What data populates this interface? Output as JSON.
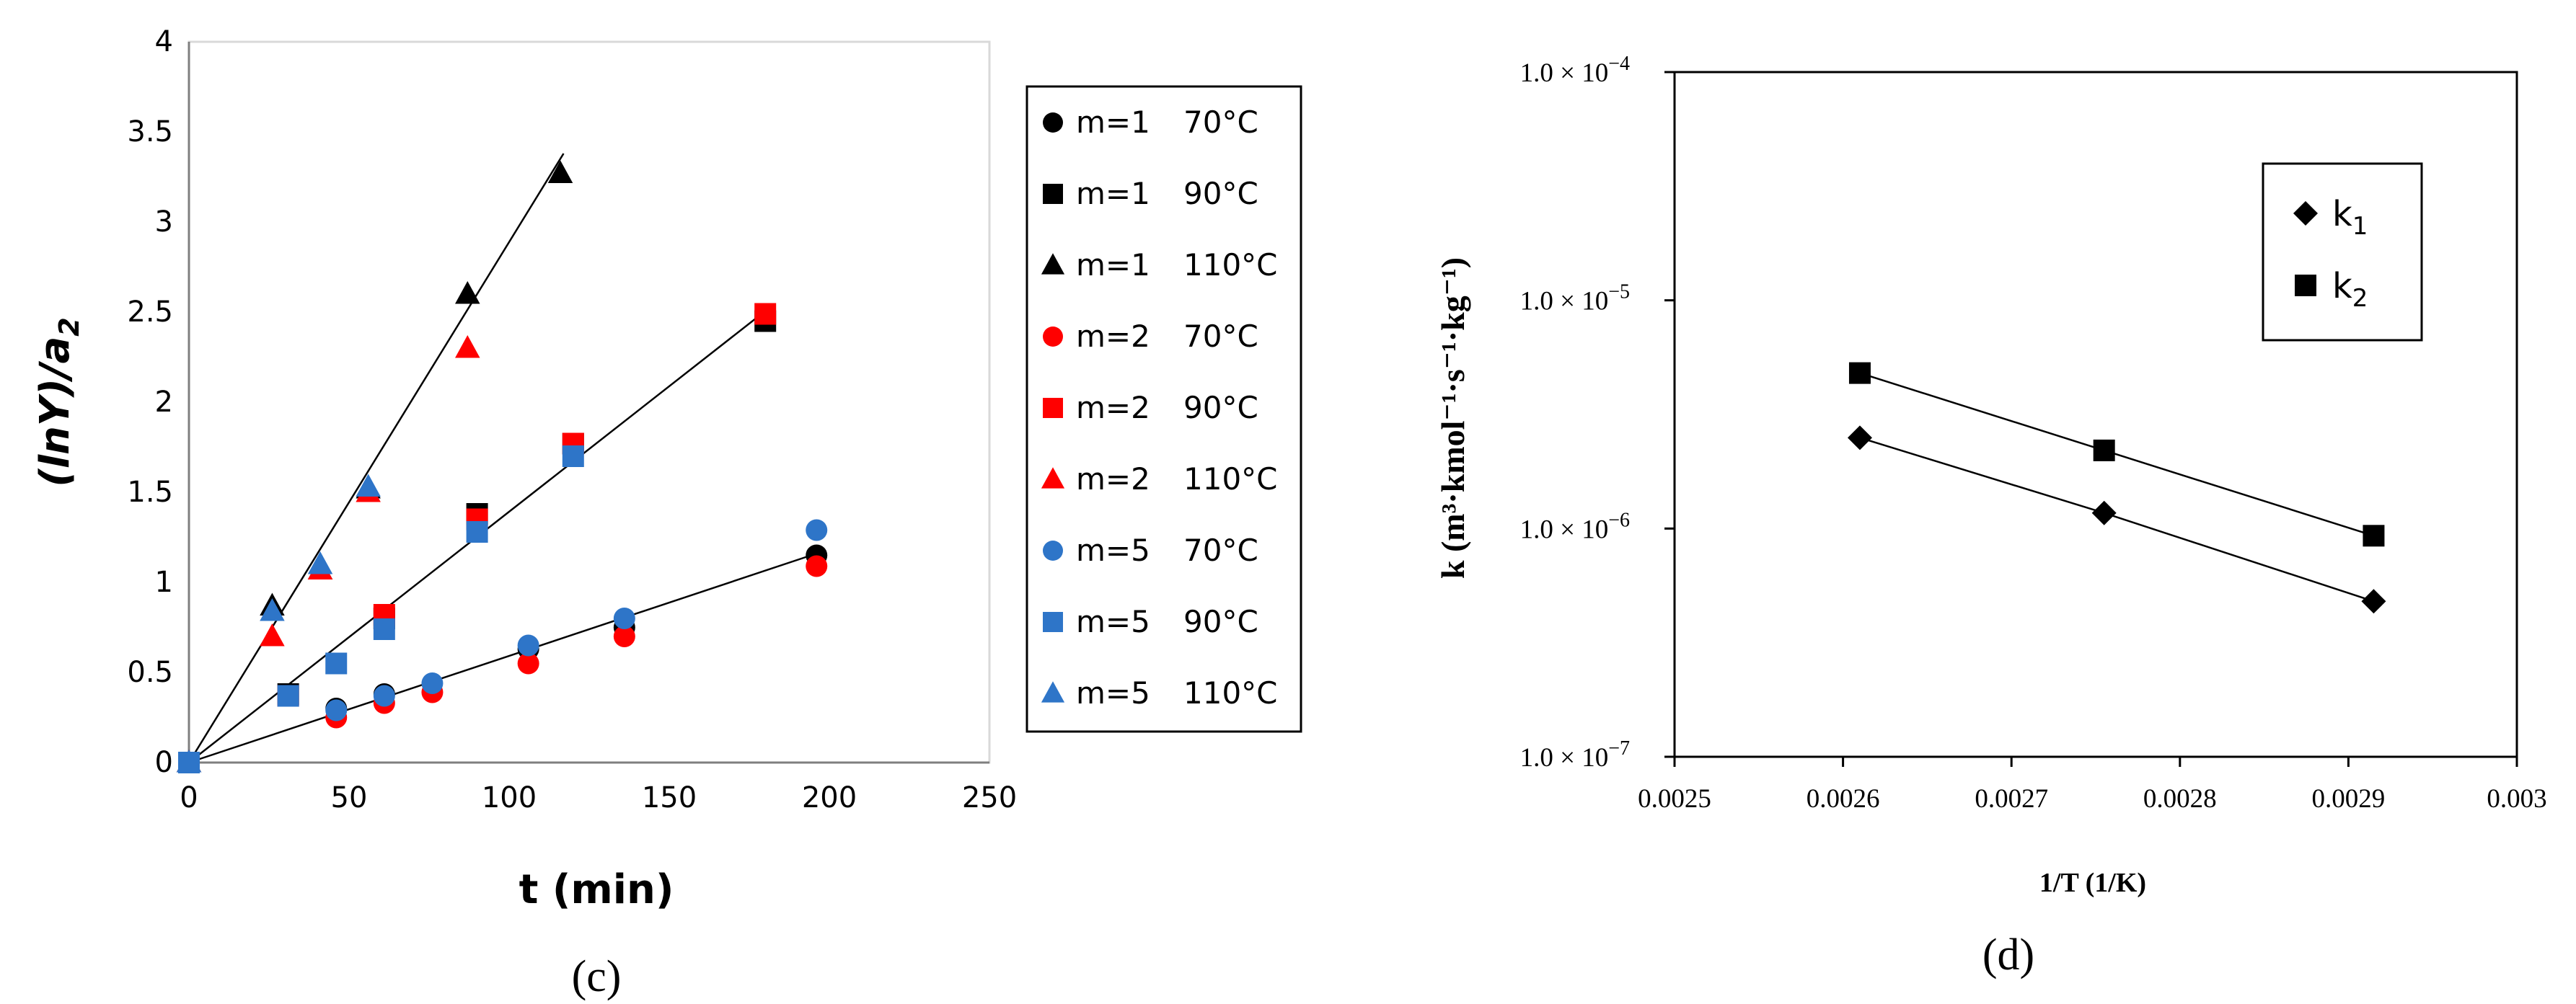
{
  "chart_data": [
    {
      "type": "scatter",
      "panel_label": "(c)",
      "xlabel": "t (min)",
      "ylabel": "(lnY)/a",
      "ylabel_sub": "2",
      "xlim": [
        0,
        250
      ],
      "ylim": [
        0,
        4
      ],
      "xticks": [
        0,
        50,
        100,
        150,
        200,
        250
      ],
      "yticks": [
        0,
        0.5,
        1,
        1.5,
        2,
        2.5,
        3,
        3.5,
        4
      ],
      "xtick_labels": [
        "0",
        "50",
        "100",
        "150",
        "200",
        "250"
      ],
      "ytick_labels": [
        "0",
        "0.5",
        "1",
        "1.5",
        "2",
        "2.5",
        "3",
        "3.5",
        "4"
      ],
      "legend_position": "right",
      "series": [
        {
          "name": "m=1 70°C",
          "label_m": "m=1",
          "label_t": "70°C",
          "marker": "circle",
          "color": "#000000",
          "x": [
            0,
            46,
            61,
            106,
            136,
            196
          ],
          "y": [
            0,
            0.3,
            0.38,
            0.63,
            0.75,
            1.15
          ]
        },
        {
          "name": "m=1 90°C",
          "label_m": "m=1",
          "label_t": "90°C",
          "marker": "square",
          "color": "#000000",
          "x": [
            0,
            31,
            61,
            90,
            120,
            180
          ],
          "y": [
            0,
            0.38,
            0.8,
            1.38,
            1.77,
            2.45
          ]
        },
        {
          "name": "m=1 110°C",
          "label_m": "m=1",
          "label_t": "110°C",
          "marker": "triangle",
          "color": "#000000",
          "x": [
            0,
            26,
            41,
            56,
            87,
            116
          ],
          "y": [
            0,
            0.87,
            1.07,
            1.52,
            2.6,
            3.27
          ]
        },
        {
          "name": "m=2 70°C",
          "label_m": "m=2",
          "label_t": "70°C",
          "marker": "circle",
          "color": "#ff0000",
          "x": [
            0,
            46,
            61,
            76,
            106,
            136,
            196
          ],
          "y": [
            0,
            0.25,
            0.33,
            0.39,
            0.55,
            0.7,
            1.09
          ]
        },
        {
          "name": "m=2 90°C",
          "label_m": "m=2",
          "label_t": "90°C",
          "marker": "square",
          "color": "#ff0000",
          "x": [
            0,
            31,
            61,
            90,
            120,
            180
          ],
          "y": [
            0,
            0.37,
            0.82,
            1.35,
            1.77,
            2.49
          ]
        },
        {
          "name": "m=2 110°C",
          "label_m": "m=2",
          "label_t": "110°C",
          "marker": "triangle",
          "color": "#ff0000",
          "x": [
            0,
            26,
            41,
            56,
            87
          ],
          "y": [
            0,
            0.7,
            1.07,
            1.5,
            2.3
          ]
        },
        {
          "name": "m=5 70°C",
          "label_m": "m=5",
          "label_t": "70°C",
          "marker": "circle",
          "color": "#2e75c8",
          "x": [
            0,
            46,
            61,
            76,
            106,
            136,
            196
          ],
          "y": [
            0,
            0.29,
            0.37,
            0.44,
            0.65,
            0.8,
            1.29
          ]
        },
        {
          "name": "m=5 90°C",
          "label_m": "m=5",
          "label_t": "90°C",
          "marker": "square",
          "color": "#2e75c8",
          "x": [
            0,
            31,
            46,
            61,
            90,
            120
          ],
          "y": [
            0,
            0.37,
            0.55,
            0.74,
            1.28,
            1.7
          ]
        },
        {
          "name": "m=5 110°C",
          "label_m": "m=5",
          "label_t": "110°C",
          "marker": "triangle",
          "color": "#2e75c8",
          "x": [
            0,
            26,
            41,
            56
          ],
          "y": [
            0,
            0.84,
            1.1,
            1.53
          ]
        }
      ],
      "fit_lines": [
        {
          "x": [
            0,
            117
          ],
          "y": [
            0,
            3.38
          ]
        },
        {
          "x": [
            0,
            181
          ],
          "y": [
            0,
            2.52
          ]
        },
        {
          "x": [
            0,
            196
          ],
          "y": [
            0,
            1.16
          ]
        }
      ]
    },
    {
      "type": "scatter",
      "panel_label": "(d)",
      "xlabel": "1/T (1/K)",
      "ylabel_html": "k (m³·kmol⁻¹·s⁻¹·kg⁻¹)",
      "yscale": "log",
      "xlim": [
        0.0025,
        0.003
      ],
      "ylim": [
        1e-07,
        0.0001
      ],
      "xticks": [
        0.0025,
        0.0026,
        0.0027,
        0.0028,
        0.0029,
        0.003
      ],
      "xtick_labels": [
        "0.0025",
        "0.0026",
        "0.0027",
        "0.0028",
        "0.0029",
        "0.003"
      ],
      "yticks": [
        1e-07,
        1e-06,
        1e-05,
        0.0001
      ],
      "ytick_labels": [
        {
          "mant": "1.0 × 10",
          "exp": "−7"
        },
        {
          "mant": "1.0 × 10",
          "exp": "−6"
        },
        {
          "mant": "1.0 × 10",
          "exp": "−5"
        },
        {
          "mant": "1.0 × 10",
          "exp": "−4"
        }
      ],
      "legend_position": "top-right",
      "series": [
        {
          "name": "k1",
          "base": "k",
          "sub": "1",
          "marker": "diamond",
          "color": "#000000",
          "x": [
            0.00261,
            0.002755,
            0.002915
          ],
          "y": [
            2.5e-06,
            1.17e-06,
            4.8e-07
          ]
        },
        {
          "name": "k2",
          "base": "k",
          "sub": "2",
          "marker": "square",
          "color": "#000000",
          "x": [
            0.00261,
            0.002755,
            0.002915
          ],
          "y": [
            4.8e-06,
            2.2e-06,
            9.3e-07
          ]
        }
      ]
    }
  ]
}
